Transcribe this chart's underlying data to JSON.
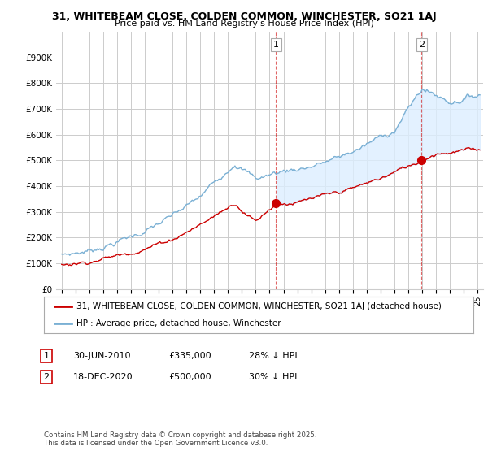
{
  "title_line1": "31, WHITEBEAM CLOSE, COLDEN COMMON, WINCHESTER, SO21 1AJ",
  "title_line2": "Price paid vs. HM Land Registry's House Price Index (HPI)",
  "red_label": "31, WHITEBEAM CLOSE, COLDEN COMMON, WINCHESTER, SO21 1AJ (detached house)",
  "blue_label": "HPI: Average price, detached house, Winchester",
  "footnote": "Contains HM Land Registry data © Crown copyright and database right 2025.\nThis data is licensed under the Open Government Licence v3.0.",
  "annotation1_date": "30-JUN-2010",
  "annotation1_price": "£335,000",
  "annotation1_hpi": "28% ↓ HPI",
  "annotation2_date": "18-DEC-2020",
  "annotation2_price": "£500,000",
  "annotation2_hpi": "30% ↓ HPI",
  "ytick_values": [
    0,
    100000,
    200000,
    300000,
    400000,
    500000,
    600000,
    700000,
    800000,
    900000
  ],
  "ytick_labels": [
    "£0",
    "£100K",
    "£200K",
    "£300K",
    "£400K",
    "£500K",
    "£600K",
    "£700K",
    "£800K",
    "£900K"
  ],
  "red_color": "#cc0000",
  "blue_color": "#7ab0d4",
  "fill_color": "#ddeeff",
  "grid_color": "#cccccc",
  "plot_bg_color": "#ffffff",
  "sale1_year": 2010.458,
  "sale1_price": 335000,
  "sale2_year": 2020.958,
  "sale2_price": 500000,
  "xlim_min": 1994.6,
  "xlim_max": 2025.4,
  "ylim_min": 0,
  "ylim_max": 1000000
}
